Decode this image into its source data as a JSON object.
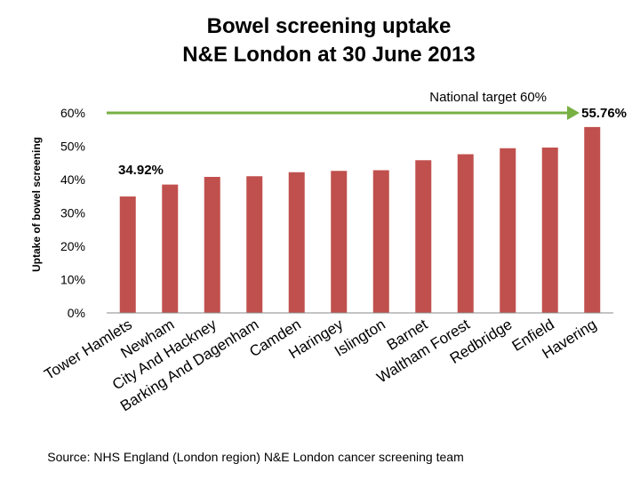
{
  "chart_data": {
    "type": "bar",
    "title": "Bowel screening uptake",
    "subtitle": "N&E London at 30 June 2013",
    "xlabel": "",
    "ylabel": "Uptake of bowel screening",
    "ylim": [
      0,
      60
    ],
    "yticks": [
      "0%",
      "10%",
      "20%",
      "30%",
      "40%",
      "50%",
      "60%"
    ],
    "ytick_values": [
      0,
      10,
      20,
      30,
      40,
      50,
      60
    ],
    "categories": [
      "Tower Hamlets",
      "Newham",
      "City And Hackney",
      "Barking And Dagenham",
      "Camden",
      "Haringey",
      "Islington",
      "Barnet",
      "Waltham Forest",
      "Redbridge",
      "Enfield",
      "Havering"
    ],
    "values": [
      34.92,
      38.5,
      40.8,
      41.0,
      42.2,
      42.6,
      42.8,
      45.8,
      47.6,
      49.4,
      49.6,
      55.76
    ],
    "bar_color": "#c0504d",
    "annotations": {
      "first_value_label": "34.92%",
      "last_value_label": "55.76%",
      "target_label": "National target 60%",
      "target_value": 60,
      "target_color": "#77b043"
    },
    "source": "Source: NHS England (London region) N&E London cancer screening team"
  }
}
